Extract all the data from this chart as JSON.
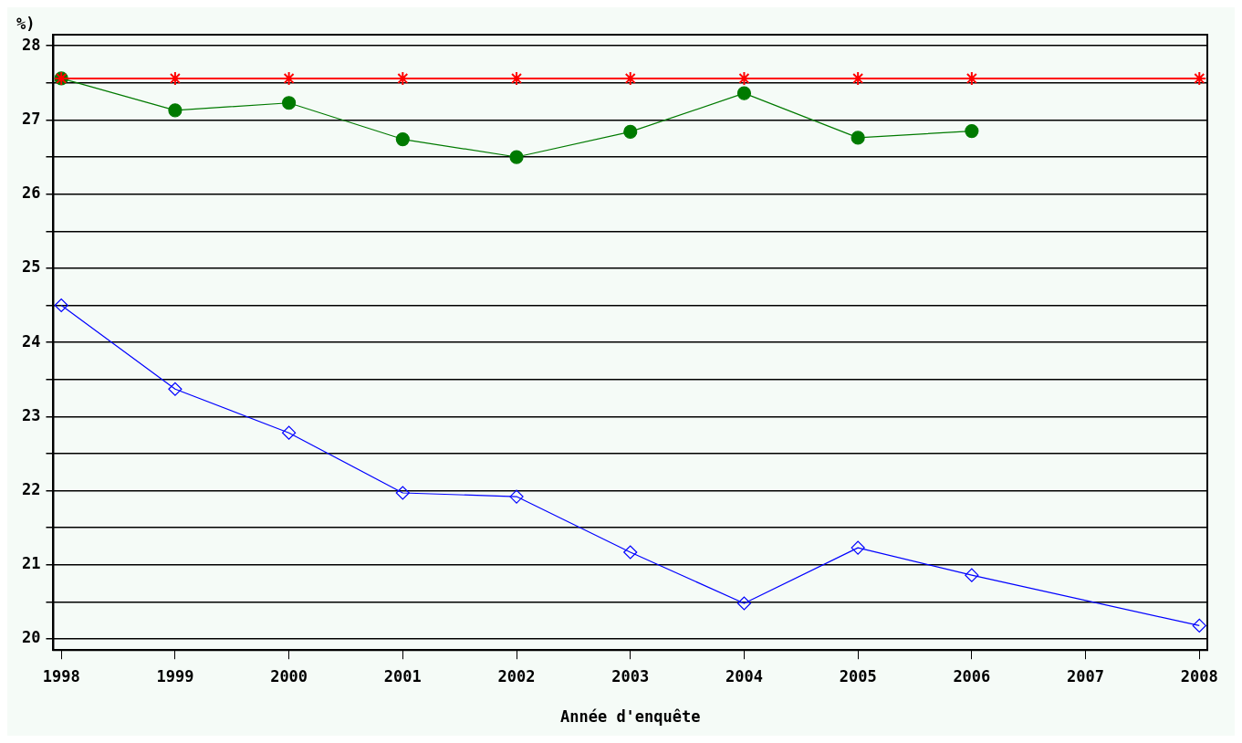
{
  "chart_data": {
    "type": "line",
    "xlabel": "Année d'enquête",
    "ylabel": "%)",
    "xlim": [
      1997.93,
      2008.07
    ],
    "xticks": [
      1998,
      1999,
      2000,
      2001,
      2002,
      2003,
      2004,
      2005,
      2006,
      2007,
      2008
    ],
    "ylim": [
      19.85,
      28.15
    ],
    "yticks": [
      20,
      {
        "value": 20.5,
        "label": null
      },
      21,
      {
        "value": 21.5,
        "label": null
      },
      22,
      {
        "value": 22.5,
        "label": null
      },
      23,
      {
        "value": 23.5,
        "label": null
      },
      24,
      {
        "value": 24.5,
        "label": null
      },
      25,
      {
        "value": 25.5,
        "label": null
      },
      26,
      {
        "value": 26.5,
        "label": null
      },
      27,
      {
        "value": 27.5,
        "label": null
      },
      28
    ],
    "grid": "y",
    "legend": false,
    "series": [
      {
        "color": "#ff0000",
        "marker": "cross",
        "x": [
          1998,
          1999,
          2000,
          2001,
          2002,
          2003,
          2004,
          2005,
          2006,
          2008
        ],
        "values": [
          27.56,
          27.56,
          27.56,
          27.56,
          27.56,
          27.56,
          27.56,
          27.56,
          27.56,
          27.56
        ]
      },
      {
        "color": "#007a00",
        "marker": "circle",
        "x": [
          1998,
          1999,
          2000,
          2001,
          2002,
          2003,
          2004,
          2005,
          2006
        ],
        "values": [
          27.56,
          27.13,
          27.23,
          26.74,
          26.5,
          26.84,
          27.36,
          26.76,
          26.85
        ]
      },
      {
        "color": "#0000ff",
        "marker": "diamond",
        "x": [
          1998,
          1999,
          2000,
          2001,
          2002,
          2003,
          2004,
          2005,
          2006,
          2008
        ],
        "values": [
          24.5,
          23.37,
          22.78,
          21.97,
          21.92,
          21.17,
          20.48,
          21.23,
          20.86,
          20.18
        ]
      }
    ]
  }
}
